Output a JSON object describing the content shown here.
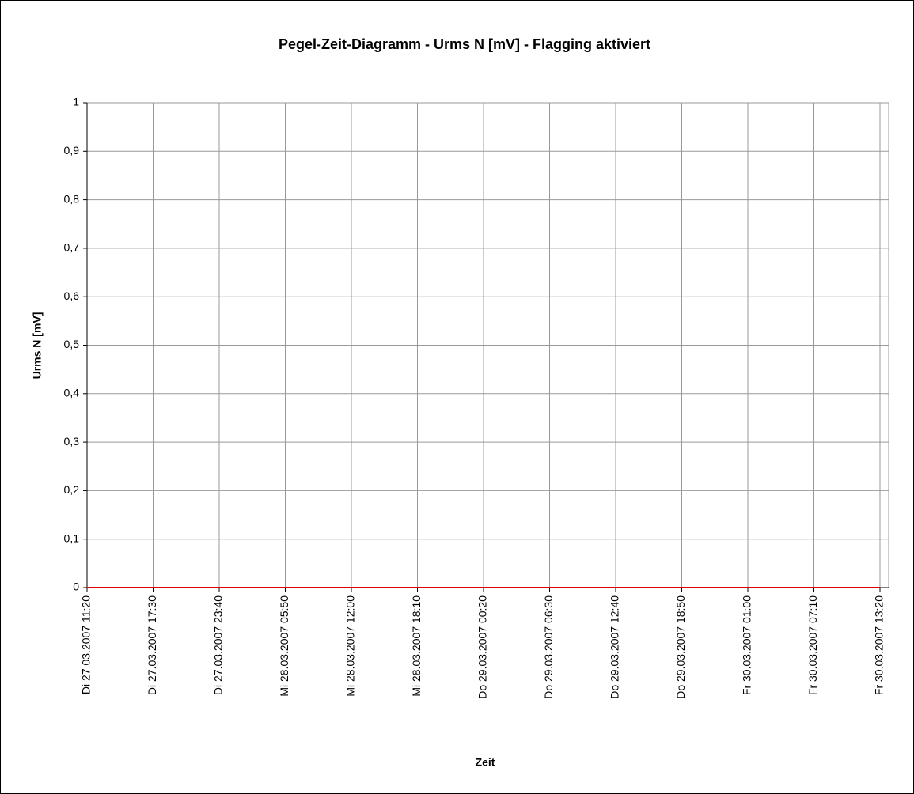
{
  "chart_data": {
    "type": "line",
    "title": "Pegel-Zeit-Diagramm - Urms N [mV] - Flagging aktiviert",
    "x_label": "Zeit",
    "y_label": "Urms N [mV]",
    "categories": [
      "Di 27.03.2007 11:20",
      "Di 27.03.2007 17:30",
      "Di 27.03.2007 23:40",
      "Mi 28.03.2007 05:50",
      "Mi 28.03.2007 12:00",
      "Mi 28.03.2007 18:10",
      "Do 29.03.2007 00:20",
      "Do 29.03.2007 06:30",
      "Do 29.03.2007 12:40",
      "Do 29.03.2007 18:50",
      "Fr 30.03.2007 01:00",
      "Fr 30.03.2007 07:10",
      "Fr 30.03.2007 13:20"
    ],
    "values": [
      0,
      0,
      0,
      0,
      0,
      0,
      0,
      0,
      0,
      0,
      0,
      0,
      0
    ],
    "color": "#e00000",
    "ylim": [
      0,
      1
    ],
    "yticks": [
      0,
      {
        "value": 0.1,
        "label": "0,1"
      },
      {
        "value": 0.2,
        "label": "0,2"
      },
      {
        "value": 0.3,
        "label": "0,3"
      },
      {
        "value": 0.4,
        "label": "0,4"
      },
      {
        "value": 0.5,
        "label": "0,5"
      },
      {
        "value": 0.6,
        "label": "0,6"
      },
      {
        "value": 0.7,
        "label": "0,7"
      },
      {
        "value": 0.8,
        "label": "0,8"
      },
      {
        "value": 0.9,
        "label": "0,9"
      },
      1
    ],
    "grid": true
  }
}
